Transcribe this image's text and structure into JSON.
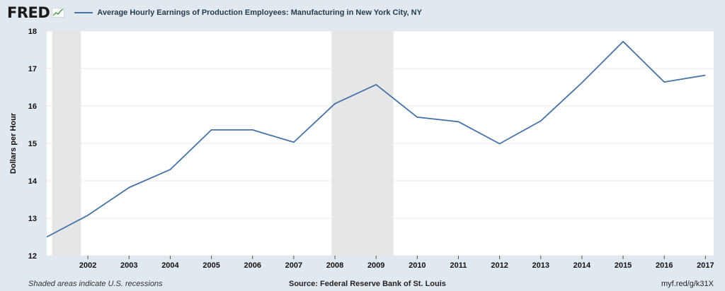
{
  "header": {
    "logo": "FRED",
    "logo_icon": "fred-chart-icon",
    "legend_label": "Average Hourly Earnings of Production Employees: Manufacturing in New York City, NY"
  },
  "footer": {
    "recession_note": "Shaded areas indicate U.S. recessions",
    "source": "Source: Federal Reserve Bank of St. Louis",
    "short_url": "myf.red/g/k31X"
  },
  "colors": {
    "background": "#e1e9f0",
    "plot_background": "#ffffff",
    "series_line": "#4572a7",
    "recession_shade": "#e6e6e6",
    "gridline": "#e8e8e8"
  },
  "chart_data": {
    "type": "line",
    "title": "",
    "xlabel": "",
    "ylabel": "Dollars per Hour",
    "ylim": [
      12,
      18
    ],
    "xlim": [
      2001.0,
      2017.2
    ],
    "yticks": [
      12,
      13,
      14,
      15,
      16,
      17,
      18
    ],
    "xticks": [
      2002,
      2003,
      2004,
      2005,
      2006,
      2007,
      2008,
      2009,
      2010,
      2011,
      2012,
      2013,
      2014,
      2015,
      2016,
      2017
    ],
    "grid": "horizontal",
    "legend_position": "top-left",
    "recessions": [
      [
        2001.13,
        2001.83
      ],
      [
        2007.92,
        2009.42
      ]
    ],
    "series": [
      {
        "name": "Average Hourly Earnings of Production Employees: Manufacturing in New York City, NY",
        "x": [
          2001.0,
          2002.0,
          2003.0,
          2004.0,
          2005.0,
          2006.0,
          2007.0,
          2008.0,
          2009.0,
          2010.0,
          2011.0,
          2012.0,
          2013.0,
          2014.0,
          2015.0,
          2016.0,
          2017.0
        ],
        "y": [
          12.5,
          13.08,
          13.82,
          14.3,
          15.36,
          15.36,
          15.03,
          16.06,
          16.57,
          15.7,
          15.58,
          14.99,
          15.6,
          16.62,
          17.72,
          16.64,
          16.82
        ]
      }
    ]
  }
}
